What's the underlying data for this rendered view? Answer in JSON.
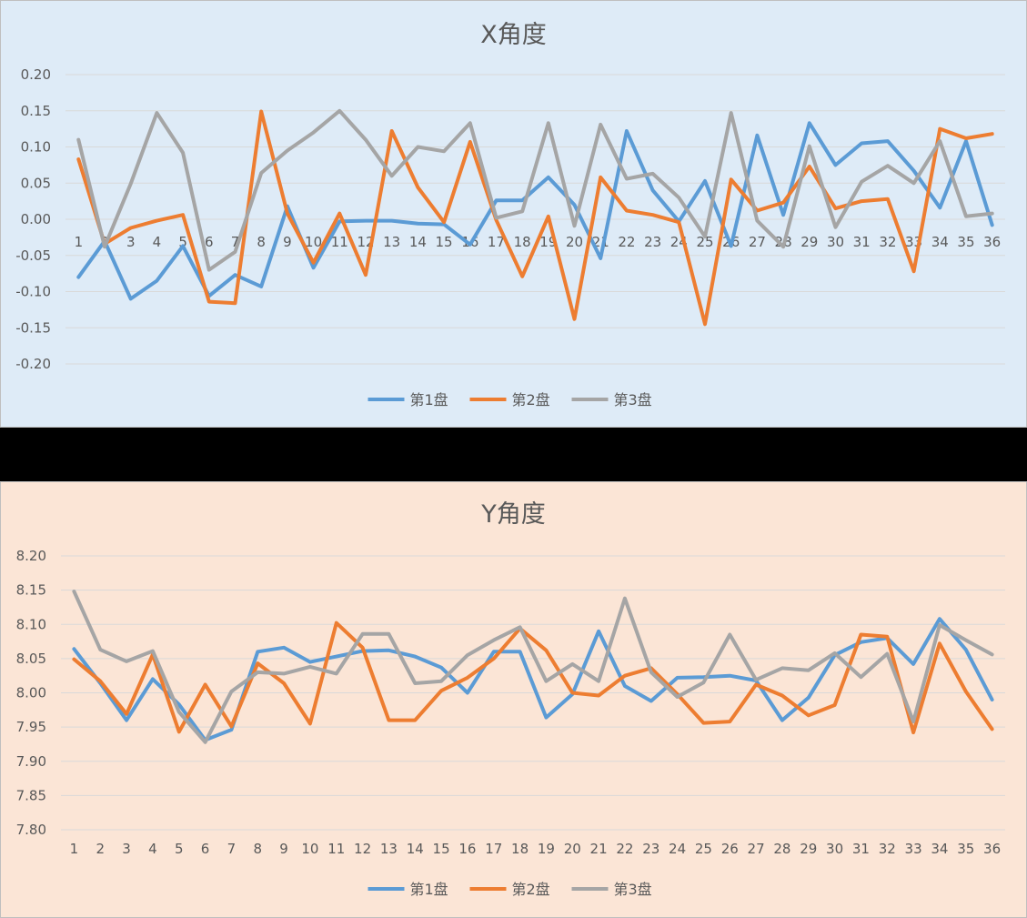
{
  "chart_data": [
    {
      "type": "line",
      "title": "X角度",
      "xlabel": "",
      "ylabel": "",
      "ylim": [
        -0.2,
        0.2
      ],
      "yticks": [
        "0.20",
        "0.15",
        "0.10",
        "0.05",
        "0.00",
        "-0.05",
        "-0.10",
        "-0.15",
        "-0.20"
      ],
      "categories": [
        "1",
        "2",
        "3",
        "4",
        "5",
        "6",
        "7",
        "8",
        "9",
        "10",
        "11",
        "12",
        "13",
        "14",
        "15",
        "16",
        "17",
        "18",
        "19",
        "20",
        "21",
        "22",
        "23",
        "24",
        "25",
        "26",
        "27",
        "28",
        "29",
        "30",
        "31",
        "32",
        "33",
        "34",
        "35",
        "36"
      ],
      "grid": true,
      "legend": "bottom",
      "series": [
        {
          "name": "第1盘",
          "color": "#5b9bd5",
          "values": [
            -0.08,
            -0.03,
            -0.11,
            -0.085,
            -0.037,
            -0.106,
            -0.077,
            -0.093,
            0.018,
            -0.067,
            -0.003,
            -0.002,
            -0.002,
            -0.006,
            -0.007,
            -0.035,
            0.026,
            0.026,
            0.058,
            0.02,
            -0.054,
            0.122,
            0.04,
            -0.003,
            0.053,
            -0.037,
            0.116,
            0.006,
            0.133,
            0.075,
            0.105,
            0.108,
            0.067,
            0.016,
            0.108,
            -0.008
          ]
        },
        {
          "name": "第2盘",
          "color": "#ed7d31",
          "values": [
            0.083,
            -0.034,
            -0.012,
            -0.002,
            0.006,
            -0.114,
            -0.116,
            0.149,
            0.008,
            -0.06,
            0.008,
            -0.077,
            0.122,
            0.044,
            -0.004,
            0.107,
            -0.001,
            -0.079,
            0.004,
            -0.138,
            0.058,
            0.012,
            0.006,
            -0.004,
            -0.145,
            0.055,
            0.012,
            0.023,
            0.073,
            0.015,
            0.025,
            0.028,
            -0.072,
            0.125,
            0.112,
            0.118
          ]
        },
        {
          "name": "第3盘",
          "color": "#a5a5a5",
          "values": [
            0.11,
            -0.038,
            0.049,
            0.147,
            0.092,
            -0.07,
            -0.045,
            0.064,
            0.095,
            0.12,
            0.15,
            0.11,
            0.06,
            0.1,
            0.094,
            0.133,
            0.002,
            0.011,
            0.133,
            -0.009,
            0.131,
            0.056,
            0.063,
            0.03,
            -0.024,
            0.147,
            -0.002,
            -0.038,
            0.101,
            -0.011,
            0.052,
            0.074,
            0.05,
            0.108,
            0.004,
            0.008
          ]
        }
      ]
    },
    {
      "type": "line",
      "title": "Y角度",
      "xlabel": "",
      "ylabel": "",
      "ylim": [
        7.8,
        8.2
      ],
      "yticks": [
        "8.20",
        "8.15",
        "8.10",
        "8.05",
        "8.00",
        "7.95",
        "7.90",
        "7.85",
        "7.80"
      ],
      "categories": [
        "1",
        "2",
        "3",
        "4",
        "5",
        "6",
        "7",
        "8",
        "9",
        "10",
        "11",
        "12",
        "13",
        "14",
        "15",
        "16",
        "17",
        "18",
        "19",
        "20",
        "21",
        "22",
        "23",
        "24",
        "25",
        "26",
        "27",
        "28",
        "29",
        "30",
        "31",
        "32",
        "33",
        "34",
        "35",
        "36"
      ],
      "grid": true,
      "legend": "bottom",
      "series": [
        {
          "name": "第1盘",
          "color": "#5b9bd5",
          "values": [
            8.064,
            8.014,
            7.96,
            8.02,
            7.983,
            7.931,
            7.946,
            8.06,
            8.066,
            8.045,
            8.053,
            8.061,
            8.062,
            8.053,
            8.037,
            8.0,
            8.06,
            8.06,
            7.964,
            7.998,
            8.09,
            8.01,
            7.988,
            8.022,
            8.023,
            8.025,
            8.018,
            7.96,
            7.993,
            8.055,
            8.074,
            8.08,
            8.042,
            8.108,
            8.063,
            7.99
          ]
        },
        {
          "name": "第2盘",
          "color": "#ed7d31",
          "values": [
            8.049,
            8.017,
            7.969,
            8.056,
            7.943,
            8.012,
            7.951,
            8.043,
            8.014,
            7.955,
            8.102,
            8.066,
            7.96,
            7.96,
            8.003,
            8.022,
            8.05,
            8.094,
            8.062,
            8.0,
            7.996,
            8.025,
            8.036,
            7.998,
            7.956,
            7.958,
            8.012,
            7.996,
            7.967,
            7.982,
            8.085,
            8.082,
            7.942,
            8.072,
            8.002,
            7.947
          ]
        },
        {
          "name": "第3盘",
          "color": "#a5a5a5",
          "values": [
            8.148,
            8.063,
            8.046,
            8.061,
            7.972,
            7.928,
            8.002,
            8.03,
            8.028,
            8.038,
            8.028,
            8.086,
            8.086,
            8.014,
            8.017,
            8.055,
            8.077,
            8.096,
            8.017,
            8.042,
            8.017,
            8.138,
            8.03,
            7.994,
            8.015,
            8.085,
            8.019,
            8.036,
            8.033,
            8.058,
            8.023,
            8.057,
            7.958,
            8.099,
            8.077,
            8.056
          ]
        }
      ]
    }
  ]
}
